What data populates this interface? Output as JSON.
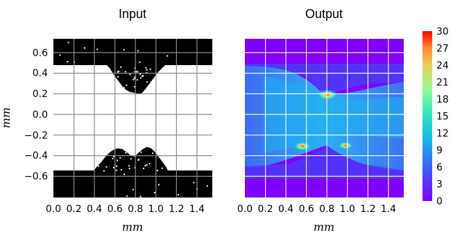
{
  "chart_data": [
    {
      "type": "heatmap",
      "title": "Input",
      "xlabel": "mm",
      "ylabel": "mm",
      "xlim": [
        0.0,
        1.55
      ],
      "ylim": [
        -0.77,
        0.77
      ],
      "xticks": [
        "0.0",
        "0.2",
        "0.4",
        "0.6",
        "0.8",
        "1.0",
        "1.2",
        "1.4"
      ],
      "yticks": [
        "0.6",
        "0.4",
        "0.2",
        "0.0",
        "−0.2",
        "−0.4",
        "−0.6"
      ],
      "grid": true,
      "colormap": "binary",
      "black_regions": {
        "top_band": {
          "y_from": 0.5,
          "y_to": 0.77,
          "x_from": 0.0,
          "x_to": 1.55
        },
        "bottom_band": {
          "y_from": -0.77,
          "y_to": -0.5,
          "x_from": 0.0,
          "x_to": 1.55
        },
        "top_bump": {
          "x_from": 0.5,
          "x_to": 1.05,
          "peak_x": 0.8,
          "peak_y": 0.25
        },
        "bottom_bump": {
          "x_from": 0.38,
          "x_to": 1.1,
          "peak_x": 0.62,
          "peak_y": -0.22
        }
      }
    },
    {
      "type": "heatmap",
      "title": "Output",
      "xlabel": "mm",
      "xlim": [
        0.0,
        1.55
      ],
      "ylim": [
        -0.77,
        0.77
      ],
      "xticks": [
        "0.0",
        "0.2",
        "0.4",
        "0.6",
        "0.8",
        "1.0",
        "1.2",
        "1.4"
      ],
      "grid": true,
      "colormap": "rainbow",
      "background_value": 0,
      "hotspots": [
        {
          "x": 0.82,
          "y": 0.24,
          "value": 30
        },
        {
          "x": 0.6,
          "y": -0.27,
          "value": 27
        },
        {
          "x": 0.98,
          "y": -0.26,
          "value": 25
        }
      ],
      "colorbar": {
        "min": 0,
        "max": 30,
        "ticks": [
          "0",
          "3",
          "6",
          "9",
          "12",
          "15",
          "18",
          "21",
          "24",
          "27",
          "30"
        ]
      }
    }
  ]
}
